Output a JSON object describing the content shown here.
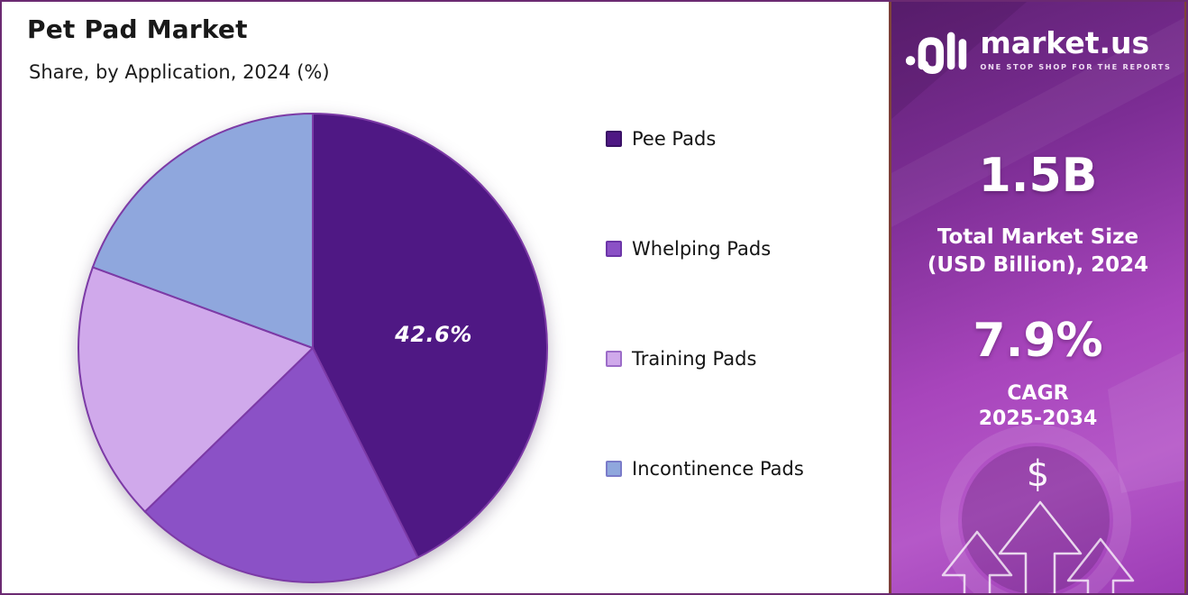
{
  "header": {
    "title": "Pet Pad Market",
    "subtitle": "Share, by Application, 2024 (%)"
  },
  "chart_data": {
    "type": "pie",
    "title": "Pet Pad Market",
    "subtitle": "Share, by Application, 2024 (%)",
    "unit": "%",
    "start_angle_deg": 0,
    "direction": "clockwise",
    "legend_position": "right",
    "stroke_color": "#7C3AA6",
    "data_label_color": "#FFFFFF",
    "slices": [
      {
        "label": "Pee Pads",
        "value": 42.6,
        "color": "#4F1884",
        "swatch_border": "#3A1166",
        "data_label": "42.6%"
      },
      {
        "label": "Whelping Pads",
        "value": 20.1,
        "color": "#8B51C6",
        "swatch_border": "#6C35A8",
        "data_label": ""
      },
      {
        "label": "Training Pads",
        "value": 17.9,
        "color": "#D0A9EB",
        "swatch_border": "#9C6CC8",
        "data_label": ""
      },
      {
        "label": "Incontinence Pads",
        "value": 19.4,
        "color": "#8FA7DD",
        "swatch_border": "#7A7BC9",
        "data_label": ""
      }
    ]
  },
  "sidebar": {
    "brand": {
      "name": "market.us",
      "tagline": "ONE STOP SHOP FOR THE REPORTS",
      "logo_icon": "market-us-monogram"
    },
    "market_size": {
      "value": "1.5B",
      "label_line1": "Total Market Size",
      "label_line2": "(USD Billion), 2024"
    },
    "cagr": {
      "value": "7.9%",
      "label_line1": "CAGR",
      "label_line2": "2025-2034"
    },
    "icons": {
      "dollar": "$",
      "growth_arrows": "three-upward-outline-arrows"
    },
    "colors": {
      "gradient_top": "#5E2173",
      "gradient_upper": "#7C2D94",
      "gradient_mid": "#A845BC",
      "gradient_lower": "#B558C8",
      "gradient_bottom": "#9C3BB5",
      "border": "#7E4238",
      "text": "#FFFFFF"
    }
  },
  "canvas": {
    "background": "#FFFFFF",
    "border_color": "#6B2A72"
  }
}
